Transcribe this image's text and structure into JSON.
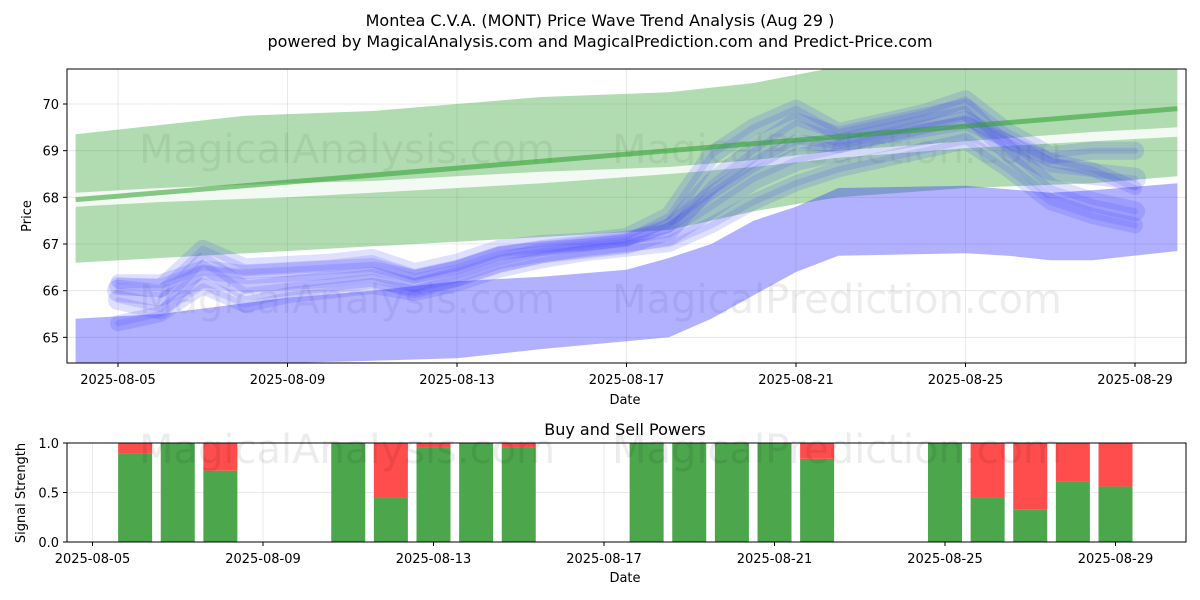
{
  "title_line1": "Montea C.V.A. (MONT) Price Wave Trend Analysis (Aug 29 )",
  "title_line2": "powered by MagicalAnalysis.com and MagicalPrediction.com and Predict-Price.com",
  "watermarks": [
    "MagicalAnalysis.com",
    "MagicalPrediction.com"
  ],
  "chart_data": [
    {
      "type": "area",
      "xlabel": "Date",
      "ylabel": "Price",
      "ylim": [
        64.45,
        70.75
      ],
      "grid": true,
      "xtick_labels": [
        "2025-08-05",
        "2025-08-09",
        "2025-08-13",
        "2025-08-17",
        "2025-08-21",
        "2025-08-25",
        "2025-08-29"
      ],
      "ytick_values": [
        65,
        66,
        67,
        68,
        69,
        70
      ],
      "colors": {
        "green_band": "#2ca02c",
        "blue_band": "#3333ff",
        "blue_lines": "#3b3bff"
      },
      "green_trend_line": {
        "x": [
          "2025-08-04",
          "2025-08-30"
        ],
        "y": [
          67.95,
          69.9
        ]
      },
      "green_band_upper": {
        "x": [
          "2025-08-04",
          "2025-08-06",
          "2025-08-08",
          "2025-08-11",
          "2025-08-13",
          "2025-08-15",
          "2025-08-18",
          "2025-08-20",
          "2025-08-22",
          "2025-08-25",
          "2025-08-28",
          "2025-08-30"
        ],
        "y": [
          69.35,
          69.55,
          69.75,
          69.85,
          70.0,
          70.15,
          70.25,
          70.45,
          70.8,
          71.0,
          71.0,
          70.75
        ]
      },
      "green_band_lower": {
        "x": [
          "2025-08-04",
          "2025-08-06",
          "2025-08-09",
          "2025-08-11",
          "2025-08-13",
          "2025-08-15",
          "2025-08-18",
          "2025-08-20",
          "2025-08-22",
          "2025-08-25",
          "2025-08-28",
          "2025-08-30"
        ],
        "y": [
          66.6,
          66.7,
          66.85,
          66.95,
          67.05,
          67.15,
          67.3,
          67.7,
          68.0,
          68.2,
          68.3,
          68.45
        ]
      },
      "green_band_inner": {
        "x": [
          "2025-08-04",
          "2025-08-06",
          "2025-08-09",
          "2025-08-11",
          "2025-08-13",
          "2025-08-15",
          "2025-08-18",
          "2025-08-20",
          "2025-08-22",
          "2025-08-25",
          "2025-08-28",
          "2025-08-30"
        ],
        "upper": [
          68.1,
          68.2,
          68.3,
          68.35,
          68.45,
          68.55,
          68.65,
          68.8,
          69.0,
          69.2,
          69.4,
          69.5
        ],
        "lower": [
          67.8,
          67.9,
          68.0,
          68.1,
          68.2,
          68.3,
          68.5,
          68.65,
          68.85,
          69.05,
          69.2,
          69.3
        ]
      },
      "blue_band_upper": {
        "x": [
          "2025-08-04",
          "2025-08-06",
          "2025-08-09",
          "2025-08-11",
          "2025-08-13",
          "2025-08-15",
          "2025-08-17",
          "2025-08-18",
          "2025-08-19",
          "2025-08-20",
          "2025-08-21",
          "2025-08-22",
          "2025-08-25",
          "2025-08-27",
          "2025-08-28",
          "2025-08-30"
        ],
        "y": [
          65.4,
          65.5,
          65.85,
          66.0,
          66.2,
          66.3,
          66.45,
          66.7,
          67.0,
          67.5,
          67.8,
          68.2,
          68.25,
          68.1,
          68.15,
          68.3
        ]
      },
      "blue_band_lower": {
        "x": [
          "2025-08-04",
          "2025-08-06",
          "2025-08-09",
          "2025-08-11",
          "2025-08-13",
          "2025-08-15",
          "2025-08-18",
          "2025-08-19",
          "2025-08-20",
          "2025-08-21",
          "2025-08-22",
          "2025-08-25",
          "2025-08-26",
          "2025-08-27",
          "2025-08-28",
          "2025-08-30"
        ],
        "y": [
          64.2,
          64.3,
          64.45,
          64.5,
          64.55,
          64.75,
          65.0,
          65.4,
          65.9,
          66.4,
          66.75,
          66.8,
          66.75,
          66.65,
          66.65,
          66.85
        ]
      },
      "blue_wave_lines": [
        {
          "x": [
            "2025-08-05",
            "2025-08-06",
            "2025-08-07",
            "2025-08-08",
            "2025-08-09",
            "2025-08-10",
            "2025-08-11",
            "2025-08-12",
            "2025-08-13",
            "2025-08-14",
            "2025-08-15",
            "2025-08-16",
            "2025-08-17",
            "2025-08-18",
            "2025-08-19",
            "2025-08-20",
            "2025-08-21",
            "2025-08-22",
            "2025-08-23",
            "2025-08-24",
            "2025-08-25",
            "2025-08-26",
            "2025-08-27",
            "2025-08-28",
            "2025-08-29"
          ],
          "y": [
            66.0,
            65.9,
            66.3,
            66.2,
            66.25,
            66.3,
            66.4,
            66.2,
            66.4,
            66.7,
            66.85,
            66.95,
            67.05,
            67.2,
            67.8,
            68.4,
            68.8,
            69.0,
            69.2,
            69.35,
            69.5,
            69.1,
            68.6,
            68.5,
            68.4
          ]
        },
        {
          "x": [
            "2025-08-05",
            "2025-08-06",
            "2025-08-07",
            "2025-08-08",
            "2025-08-09",
            "2025-08-10",
            "2025-08-11",
            "2025-08-12",
            "2025-08-13",
            "2025-08-14",
            "2025-08-15",
            "2025-08-16",
            "2025-08-17",
            "2025-08-18",
            "2025-08-19",
            "2025-08-20",
            "2025-08-21",
            "2025-08-22",
            "2025-08-23",
            "2025-08-24",
            "2025-08-25",
            "2025-08-26",
            "2025-08-27",
            "2025-08-28",
            "2025-08-29"
          ],
          "y": [
            65.8,
            65.6,
            66.6,
            66.0,
            66.1,
            66.2,
            66.3,
            66.05,
            66.3,
            66.6,
            66.8,
            66.9,
            67.0,
            67.3,
            68.3,
            69.0,
            69.6,
            69.3,
            69.5,
            69.7,
            69.9,
            69.0,
            68.2,
            67.9,
            67.7
          ]
        },
        {
          "x": [
            "2025-08-05",
            "2025-08-06",
            "2025-08-07",
            "2025-08-08",
            "2025-08-09",
            "2025-08-10",
            "2025-08-11",
            "2025-08-12",
            "2025-08-13",
            "2025-08-14",
            "2025-08-15",
            "2025-08-16",
            "2025-08-17",
            "2025-08-18",
            "2025-08-19",
            "2025-08-20",
            "2025-08-21",
            "2025-08-22",
            "2025-08-23",
            "2025-08-24",
            "2025-08-25",
            "2025-08-26",
            "2025-08-27",
            "2025-08-28",
            "2025-08-29"
          ],
          "y": [
            66.1,
            66.05,
            66.9,
            66.5,
            66.55,
            66.6,
            66.7,
            66.4,
            66.6,
            66.9,
            67.0,
            67.05,
            67.15,
            67.6,
            68.9,
            69.5,
            69.9,
            69.4,
            69.6,
            69.8,
            70.1,
            69.4,
            68.9,
            69.0,
            69.0
          ]
        },
        {
          "x": [
            "2025-08-05",
            "2025-08-06",
            "2025-08-07",
            "2025-08-08",
            "2025-08-09",
            "2025-08-10",
            "2025-08-11",
            "2025-08-12",
            "2025-08-13",
            "2025-08-14",
            "2025-08-15",
            "2025-08-16",
            "2025-08-17",
            "2025-08-18",
            "2025-08-19",
            "2025-08-20",
            "2025-08-21",
            "2025-08-22",
            "2025-08-23",
            "2025-08-24",
            "2025-08-25",
            "2025-08-26",
            "2025-08-27",
            "2025-08-28",
            "2025-08-29"
          ],
          "y": [
            65.3,
            65.5,
            66.1,
            65.7,
            65.9,
            66.0,
            66.1,
            65.95,
            66.15,
            66.45,
            66.65,
            66.8,
            66.9,
            67.0,
            67.4,
            67.9,
            68.3,
            68.6,
            68.8,
            69.0,
            69.2,
            68.6,
            67.9,
            67.6,
            67.4
          ]
        },
        {
          "x": [
            "2025-08-05",
            "2025-08-06",
            "2025-08-07",
            "2025-08-08",
            "2025-08-09",
            "2025-08-10",
            "2025-08-11",
            "2025-08-12",
            "2025-08-13",
            "2025-08-14",
            "2025-08-15",
            "2025-08-16",
            "2025-08-17",
            "2025-08-18",
            "2025-08-19",
            "2025-08-20",
            "2025-08-21",
            "2025-08-22",
            "2025-08-23",
            "2025-08-24",
            "2025-08-25",
            "2025-08-26",
            "2025-08-27",
            "2025-08-28",
            "2025-08-29"
          ],
          "y": [
            66.2,
            66.2,
            66.5,
            66.4,
            66.45,
            66.5,
            66.55,
            66.3,
            66.5,
            66.8,
            66.9,
            67.0,
            67.1,
            67.4,
            68.1,
            68.7,
            69.2,
            69.1,
            69.3,
            69.5,
            69.7,
            69.2,
            68.8,
            68.6,
            68.2
          ]
        }
      ]
    },
    {
      "type": "bar",
      "title": "Buy and Sell Powers",
      "xlabel": "Date",
      "ylabel": "Signal Strength",
      "ylim": [
        0,
        1
      ],
      "ytick_labels": [
        "0.0",
        "0.5",
        "1.0"
      ],
      "xtick_labels": [
        "2025-08-05",
        "2025-08-09",
        "2025-08-13",
        "2025-08-17",
        "2025-08-21",
        "2025-08-25",
        "2025-08-29"
      ],
      "grid": true,
      "colors": {
        "buy": "#4ca64c",
        "sell": "#ff4c4c"
      },
      "categories": [
        "2025-08-06",
        "2025-08-07",
        "2025-08-08",
        "2025-08-11",
        "2025-08-12",
        "2025-08-13",
        "2025-08-14",
        "2025-08-15",
        "2025-08-18",
        "2025-08-19",
        "2025-08-20",
        "2025-08-21",
        "2025-08-22",
        "2025-08-25",
        "2025-08-26",
        "2025-08-27",
        "2025-08-28",
        "2025-08-29"
      ],
      "series": [
        {
          "values": [
            0.89,
            1.0,
            0.72,
            1.0,
            0.45,
            0.95,
            1.0,
            0.95,
            1.0,
            1.0,
            1.0,
            1.0,
            0.84,
            1.0,
            0.45,
            0.33,
            0.61,
            0.56
          ]
        },
        {
          "values": [
            0.11,
            0.0,
            0.28,
            0.0,
            0.55,
            0.05,
            0.0,
            0.05,
            0.0,
            0.0,
            0.0,
            0.0,
            0.16,
            0.0,
            0.55,
            0.67,
            0.39,
            0.44
          ]
        }
      ]
    }
  ]
}
